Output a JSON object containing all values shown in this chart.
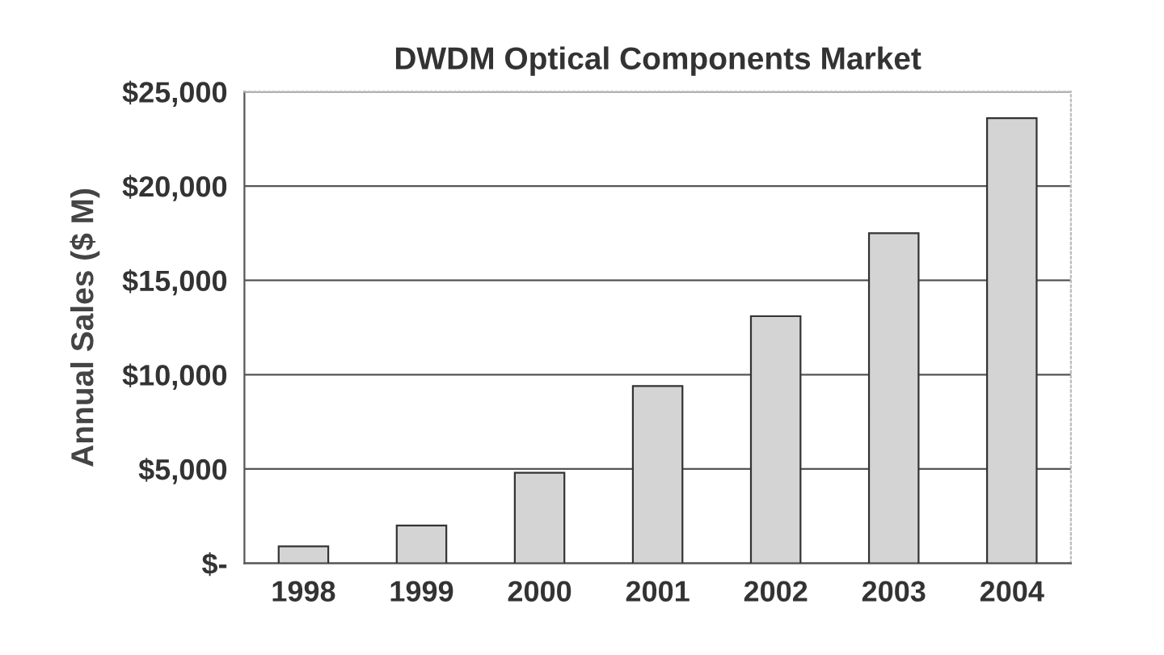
{
  "chart_data": {
    "type": "bar",
    "title": "DWDM Optical Components Market",
    "ylabel": "Annual Sales ($ M)",
    "categories": [
      "1998",
      "1999",
      "2000",
      "2001",
      "2002",
      "2003",
      "2004"
    ],
    "values": [
      900,
      2000,
      4800,
      9400,
      13100,
      17500,
      23600
    ],
    "color": "#d4d4d4",
    "ylim": [
      0,
      25000
    ],
    "yticks": [
      {
        "value": 0,
        "label": "$-"
      },
      {
        "value": 5000,
        "label": "$5,000"
      },
      {
        "value": 10000,
        "label": "$10,000"
      },
      {
        "value": 15000,
        "label": "$15,000"
      },
      {
        "value": 20000,
        "label": "$20,000"
      },
      {
        "value": 25000,
        "label": "$25,000"
      }
    ],
    "grid": "y",
    "legend": false
  }
}
